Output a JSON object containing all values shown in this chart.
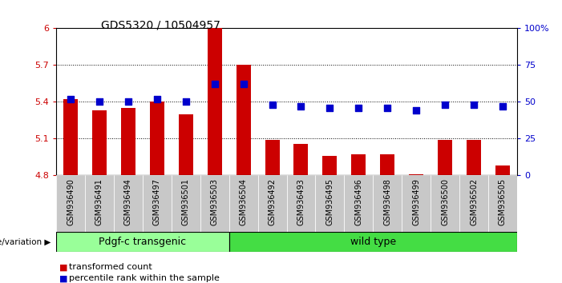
{
  "title": "GDS5320 / 10504957",
  "samples": [
    "GSM936490",
    "GSM936491",
    "GSM936494",
    "GSM936497",
    "GSM936501",
    "GSM936503",
    "GSM936504",
    "GSM936492",
    "GSM936493",
    "GSM936495",
    "GSM936496",
    "GSM936498",
    "GSM936499",
    "GSM936500",
    "GSM936502",
    "GSM936505"
  ],
  "red_values": [
    5.42,
    5.33,
    5.35,
    5.4,
    5.3,
    6.0,
    5.7,
    5.09,
    5.06,
    4.96,
    4.97,
    4.97,
    4.81,
    5.09,
    5.09,
    4.88
  ],
  "blue_values": [
    52,
    50,
    50,
    52,
    50,
    62,
    62,
    48,
    47,
    46,
    46,
    46,
    44,
    48,
    48,
    47
  ],
  "ylim_left": [
    4.8,
    6.0
  ],
  "ylim_right": [
    0,
    100
  ],
  "yticks_left": [
    4.8,
    5.1,
    5.4,
    5.7,
    6.0
  ],
  "yticks_right": [
    0,
    25,
    50,
    75,
    100
  ],
  "ytick_labels_left": [
    "4.8",
    "5.1",
    "5.4",
    "5.7",
    "6"
  ],
  "ytick_labels_right": [
    "0",
    "25",
    "50",
    "75",
    "100%"
  ],
  "hlines": [
    5.1,
    5.4,
    5.7
  ],
  "group1_label": "Pdgf-c transgenic",
  "group2_label": "wild type",
  "group1_count": 6,
  "group2_count": 10,
  "legend_red": "transformed count",
  "legend_blue": "percentile rank within the sample",
  "bar_color": "#cc0000",
  "dot_color": "#0000cc",
  "group1_color": "#99ff99",
  "group2_color": "#44dd44",
  "xticklabel_bg": "#c8c8c8",
  "bar_width": 0.5,
  "dot_size": 30,
  "ylabel_left_color": "#cc0000",
  "ylabel_right_color": "#0000cc",
  "title_fontsize": 10,
  "tick_fontsize": 8,
  "xlabel_fontsize": 7,
  "group_label_fontsize": 9,
  "legend_fontsize": 8
}
